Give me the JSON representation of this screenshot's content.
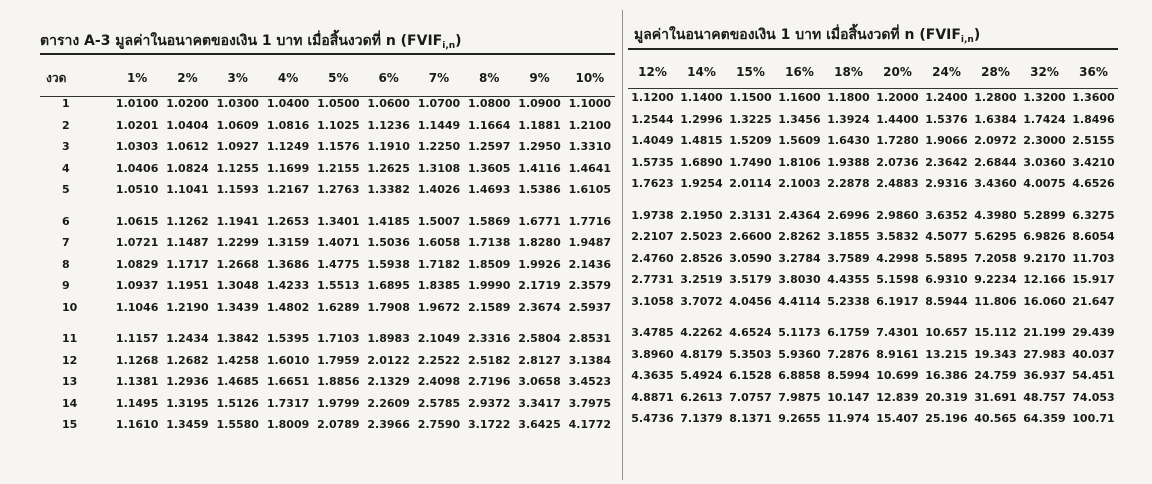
{
  "left_title": "ตาราง A-3  มูลค่าในอนาคตของเงิน 1 บาท เมื่อสิ้นงวดที่ n (FVIF",
  "right_title": "มูลค่าในอนาคตของเงิน 1 บาท เมื่อสิ้นงวดที่ n (FVIF",
  "title_subscript": "i,n",
  "title_close": ")",
  "period_header": "งวด",
  "left_rates": [
    "1%",
    "2%",
    "3%",
    "4%",
    "5%",
    "6%",
    "7%",
    "8%",
    "9%",
    "10%"
  ],
  "right_rates": [
    "12%",
    "14%",
    "15%",
    "16%",
    "18%",
    "20%",
    "24%",
    "28%",
    "32%",
    "36%"
  ],
  "rows": [
    {
      "n": "1",
      "left": [
        "1.0100",
        "1.0200",
        "1.0300",
        "1.0400",
        "1.0500",
        "1.0600",
        "1.0700",
        "1.0800",
        "1.0900",
        "1.1000"
      ],
      "right": [
        "1.1200",
        "1.1400",
        "1.1500",
        "1.1600",
        "1.1800",
        "1.2000",
        "1.2400",
        "1.2800",
        "1.3200",
        "1.3600"
      ]
    },
    {
      "n": "2",
      "left": [
        "1.0201",
        "1.0404",
        "1.0609",
        "1.0816",
        "1.1025",
        "1.1236",
        "1.1449",
        "1.1664",
        "1.1881",
        "1.2100"
      ],
      "right": [
        "1.2544",
        "1.2996",
        "1.3225",
        "1.3456",
        "1.3924",
        "1.4400",
        "1.5376",
        "1.6384",
        "1.7424",
        "1.8496"
      ]
    },
    {
      "n": "3",
      "left": [
        "1.0303",
        "1.0612",
        "1.0927",
        "1.1249",
        "1.1576",
        "1.1910",
        "1.2250",
        "1.2597",
        "1.2950",
        "1.3310"
      ],
      "right": [
        "1.4049",
        "1.4815",
        "1.5209",
        "1.5609",
        "1.6430",
        "1.7280",
        "1.9066",
        "2.0972",
        "2.3000",
        "2.5155"
      ]
    },
    {
      "n": "4",
      "left": [
        "1.0406",
        "1.0824",
        "1.1255",
        "1.1699",
        "1.2155",
        "1.2625",
        "1.3108",
        "1.3605",
        "1.4116",
        "1.4641"
      ],
      "right": [
        "1.5735",
        "1.6890",
        "1.7490",
        "1.8106",
        "1.9388",
        "2.0736",
        "2.3642",
        "2.6844",
        "3.0360",
        "3.4210"
      ]
    },
    {
      "n": "5",
      "left": [
        "1.0510",
        "1.1041",
        "1.1593",
        "1.2167",
        "1.2763",
        "1.3382",
        "1.4026",
        "1.4693",
        "1.5386",
        "1.6105"
      ],
      "right": [
        "1.7623",
        "1.9254",
        "2.0114",
        "2.1003",
        "2.2878",
        "2.4883",
        "2.9316",
        "3.4360",
        "4.0075",
        "4.6526"
      ]
    },
    {
      "n": "6",
      "left": [
        "1.0615",
        "1.1262",
        "1.1941",
        "1.2653",
        "1.3401",
        "1.4185",
        "1.5007",
        "1.5869",
        "1.6771",
        "1.7716"
      ],
      "right": [
        "1.9738",
        "2.1950",
        "2.3131",
        "2.4364",
        "2.6996",
        "2.9860",
        "3.6352",
        "4.3980",
        "5.2899",
        "6.3275"
      ]
    },
    {
      "n": "7",
      "left": [
        "1.0721",
        "1.1487",
        "1.2299",
        "1.3159",
        "1.4071",
        "1.5036",
        "1.6058",
        "1.7138",
        "1.8280",
        "1.9487"
      ],
      "right": [
        "2.2107",
        "2.5023",
        "2.6600",
        "2.8262",
        "3.1855",
        "3.5832",
        "4.5077",
        "5.6295",
        "6.9826",
        "8.6054"
      ]
    },
    {
      "n": "8",
      "left": [
        "1.0829",
        "1.1717",
        "1.2668",
        "1.3686",
        "1.4775",
        "1.5938",
        "1.7182",
        "1.8509",
        "1.9926",
        "2.1436"
      ],
      "right": [
        "2.4760",
        "2.8526",
        "3.0590",
        "3.2784",
        "3.7589",
        "4.2998",
        "5.5895",
        "7.2058",
        "9.2170",
        "11.703"
      ]
    },
    {
      "n": "9",
      "left": [
        "1.0937",
        "1.1951",
        "1.3048",
        "1.4233",
        "1.5513",
        "1.6895",
        "1.8385",
        "1.9990",
        "2.1719",
        "2.3579"
      ],
      "right": [
        "2.7731",
        "3.2519",
        "3.5179",
        "3.8030",
        "4.4355",
        "5.1598",
        "6.9310",
        "9.2234",
        "12.166",
        "15.917"
      ]
    },
    {
      "n": "10",
      "left": [
        "1.1046",
        "1.2190",
        "1.3439",
        "1.4802",
        "1.6289",
        "1.7908",
        "1.9672",
        "2.1589",
        "2.3674",
        "2.5937"
      ],
      "right": [
        "3.1058",
        "3.7072",
        "4.0456",
        "4.4114",
        "5.2338",
        "6.1917",
        "8.5944",
        "11.806",
        "16.060",
        "21.647"
      ]
    },
    {
      "n": "11",
      "left": [
        "1.1157",
        "1.2434",
        "1.3842",
        "1.5395",
        "1.7103",
        "1.8983",
        "2.1049",
        "2.3316",
        "2.5804",
        "2.8531"
      ],
      "right": [
        "3.4785",
        "4.2262",
        "4.6524",
        "5.1173",
        "6.1759",
        "7.4301",
        "10.657",
        "15.112",
        "21.199",
        "29.439"
      ]
    },
    {
      "n": "12",
      "left": [
        "1.1268",
        "1.2682",
        "1.4258",
        "1.6010",
        "1.7959",
        "2.0122",
        "2.2522",
        "2.5182",
        "2.8127",
        "3.1384"
      ],
      "right": [
        "3.8960",
        "4.8179",
        "5.3503",
        "5.9360",
        "7.2876",
        "8.9161",
        "13.215",
        "19.343",
        "27.983",
        "40.037"
      ]
    },
    {
      "n": "13",
      "left": [
        "1.1381",
        "1.2936",
        "1.4685",
        "1.6651",
        "1.8856",
        "2.1329",
        "2.4098",
        "2.7196",
        "3.0658",
        "3.4523"
      ],
      "right": [
        "4.3635",
        "5.4924",
        "6.1528",
        "6.8858",
        "8.5994",
        "10.699",
        "16.386",
        "24.759",
        "36.937",
        "54.451"
      ]
    },
    {
      "n": "14",
      "left": [
        "1.1495",
        "1.3195",
        "1.5126",
        "1.7317",
        "1.9799",
        "2.2609",
        "2.5785",
        "2.9372",
        "3.3417",
        "3.7975"
      ],
      "right": [
        "4.8871",
        "6.2613",
        "7.0757",
        "7.9875",
        "10.147",
        "12.839",
        "20.319",
        "31.691",
        "48.757",
        "74.053"
      ]
    },
    {
      "n": "15",
      "left": [
        "1.1610",
        "1.3459",
        "1.5580",
        "1.8009",
        "2.0789",
        "2.3966",
        "2.7590",
        "3.1722",
        "3.6425",
        "4.1772"
      ],
      "right": [
        "5.4736",
        "7.1379",
        "8.1371",
        "9.2655",
        "11.974",
        "15.407",
        "25.196",
        "40.565",
        "64.359",
        "100.71"
      ]
    }
  ]
}
